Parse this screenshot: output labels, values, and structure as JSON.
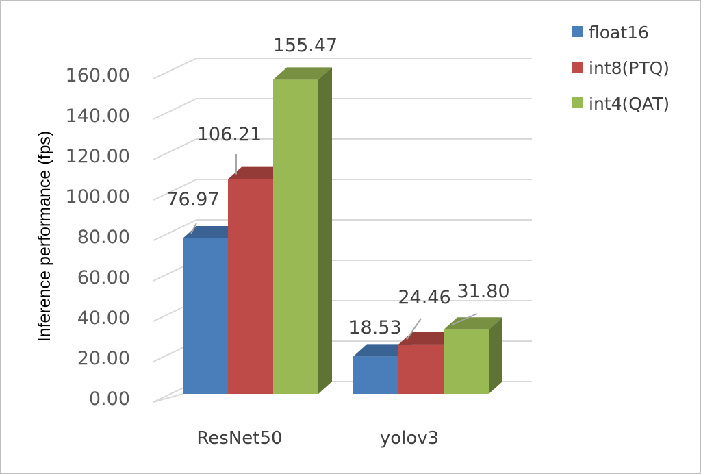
{
  "chart_data": {
    "type": "bar",
    "style": "3d-clustered-column",
    "ylabel": "Inference performance (fps)",
    "xlabel": "",
    "ylim": [
      0,
      160
    ],
    "yticks": [
      "0.00",
      "20.00",
      "40.00",
      "60.00",
      "80.00",
      "100.00",
      "120.00",
      "140.00",
      "160.00"
    ],
    "categories": [
      "ResNet50",
      "yolov3"
    ],
    "series": [
      {
        "name": "float16",
        "values": [
          76.97,
          18.53
        ],
        "labels": [
          "76.97",
          "18.53"
        ],
        "color": "#4a7ebb"
      },
      {
        "name": "int8(PTQ)",
        "values": [
          106.21,
          24.46
        ],
        "labels": [
          "106.21",
          "24.46"
        ],
        "color": "#be4b48"
      },
      {
        "name": "int4(QAT)",
        "values": [
          155.47,
          31.8
        ],
        "labels": [
          "155.47",
          "31.80"
        ],
        "color": "#98b954"
      }
    ],
    "grid": true,
    "legend": "top-right"
  }
}
